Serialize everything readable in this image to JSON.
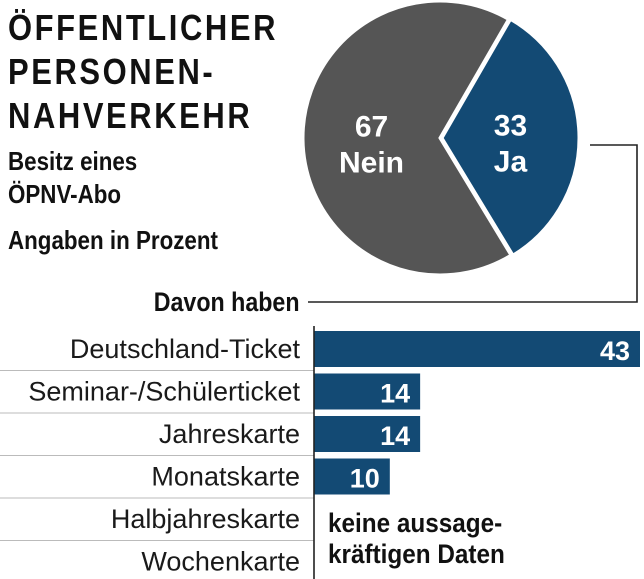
{
  "title": "ÖFFENTLICHER\nPERSONEN-\nNAHVERKEHR",
  "subtitle": "Besitz eines\nÖPNV-Abo",
  "unit": "Angaben in Prozent",
  "davon_label": "Davon haben",
  "no_data_note": "keine aussage-\nkräftigen Daten",
  "colors": {
    "dark_blue": "#134a74",
    "dark_gray": "#555555",
    "white": "#ffffff"
  },
  "chart_data": [
    {
      "type": "pie",
      "categories": [
        "Nein",
        "Ja"
      ],
      "values": [
        67,
        33
      ],
      "colors": [
        "#555555",
        "#134a74"
      ],
      "labels": [
        {
          "value": "67",
          "name": "Nein"
        },
        {
          "value": "33",
          "name": "Ja"
        }
      ]
    },
    {
      "type": "bar",
      "orientation": "horizontal",
      "categories": [
        "Deutschland-Ticket",
        "Seminar-/Schülerticket",
        "Jahreskarte",
        "Monatskarte",
        "Halbjahreskarte",
        "Wochenkarte"
      ],
      "values": [
        43,
        14,
        14,
        10,
        null,
        null
      ],
      "value_labels": [
        "43",
        "14",
        "14",
        "10",
        "",
        ""
      ],
      "xlim": [
        0,
        43
      ],
      "grid": false
    }
  ]
}
